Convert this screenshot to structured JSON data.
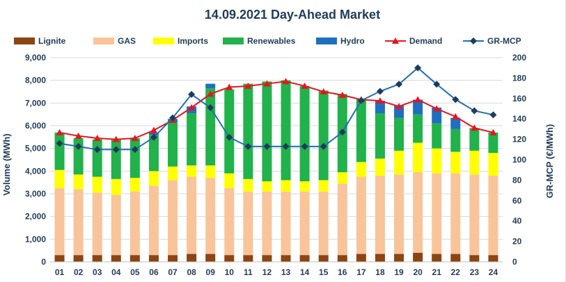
{
  "chart_data": {
    "type": "bar",
    "title": "14.09.2021  Day-Ahead Market",
    "ylabel": "Volume (MWh)",
    "y2label": "GR-MCP (€/MWh)",
    "ylim": [
      0,
      9000
    ],
    "y2lim": [
      0,
      200
    ],
    "yticks": [
      "0",
      "1,000",
      "2,000",
      "3,000",
      "4,000",
      "5,000",
      "6,000",
      "7,000",
      "8,000",
      "9,000"
    ],
    "y2ticks": [
      "0",
      "20",
      "40",
      "60",
      "80",
      "100",
      "120",
      "140",
      "160",
      "180",
      "200"
    ],
    "categories": [
      "01",
      "02",
      "03",
      "04",
      "05",
      "06",
      "07",
      "08",
      "09",
      "10",
      "11",
      "12",
      "13",
      "14",
      "15",
      "16",
      "17",
      "18",
      "19",
      "20",
      "21",
      "22",
      "23",
      "24"
    ],
    "grid": true,
    "legend_position": "top",
    "series": [
      {
        "name": "Lignite",
        "kind": "stacked-bar",
        "color": "#8b4513",
        "values": [
          300,
          300,
          300,
          300,
          300,
          300,
          300,
          350,
          350,
          300,
          300,
          300,
          300,
          300,
          300,
          300,
          350,
          350,
          350,
          400,
          350,
          350,
          300,
          300
        ]
      },
      {
        "name": "GAS",
        "kind": "stacked-bar",
        "color": "#f9c49a",
        "values": [
          2950,
          2900,
          2750,
          2650,
          2800,
          3050,
          3300,
          3400,
          3350,
          2950,
          2800,
          2800,
          2800,
          2800,
          2800,
          3150,
          3400,
          3450,
          3500,
          3550,
          3550,
          3550,
          3550,
          3500
        ]
      },
      {
        "name": "Imports",
        "kind": "stacked-bar",
        "color": "#ffff00",
        "values": [
          800,
          650,
          700,
          700,
          600,
          650,
          600,
          500,
          550,
          650,
          550,
          450,
          500,
          450,
          500,
          500,
          650,
          750,
          1050,
          1300,
          1100,
          950,
          1050,
          1000
        ]
      },
      {
        "name": "Renewables",
        "kind": "stacked-bar",
        "color": "#21b24b",
        "values": [
          1650,
          1600,
          1650,
          1750,
          1750,
          1600,
          1950,
          2300,
          3400,
          3700,
          4200,
          4400,
          4400,
          4200,
          3950,
          3450,
          2800,
          2000,
          1450,
          1250,
          1100,
          1000,
          1000,
          900
        ]
      },
      {
        "name": "Hydro",
        "kind": "stacked-bar",
        "color": "#1f6fc0",
        "values": [
          0,
          0,
          0,
          0,
          0,
          100,
          150,
          300,
          200,
          0,
          0,
          0,
          0,
          0,
          0,
          0,
          0,
          550,
          550,
          650,
          700,
          500,
          0,
          0
        ]
      },
      {
        "name": "Demand",
        "kind": "line",
        "axis": "left",
        "color": "#e8141c",
        "values": [
          5700,
          5550,
          5450,
          5400,
          5450,
          5800,
          6250,
          6800,
          7400,
          7700,
          7750,
          7850,
          7950,
          7750,
          7500,
          7350,
          7150,
          7100,
          6850,
          7150,
          6750,
          6400,
          5900,
          5700
        ]
      },
      {
        "name": "GR-MCP",
        "kind": "line",
        "axis": "right",
        "color": "#1f6fb0",
        "values": [
          116,
          113,
          110,
          110,
          110,
          122,
          141,
          164,
          151,
          122,
          113,
          113,
          113,
          113,
          113,
          127,
          158,
          167,
          174,
          190,
          174,
          159,
          148,
          144
        ]
      }
    ]
  }
}
